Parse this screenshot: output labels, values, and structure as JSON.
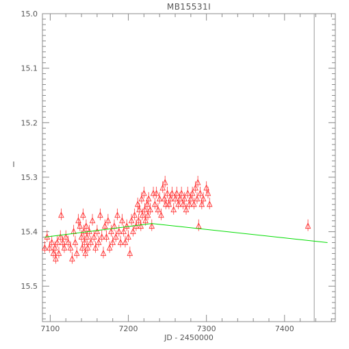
{
  "chart_data": {
    "type": "scatter",
    "title": "MB15531I",
    "xlabel": "JD - 2450000",
    "ylabel": "I",
    "xlim": [
      7090,
      7465
    ],
    "ylim": [
      15.0,
      15.565
    ],
    "y_inverted": true,
    "x_ticks": [
      7100,
      7200,
      7300,
      7400
    ],
    "y_ticks": [
      15.0,
      15.1,
      15.2,
      15.3,
      15.4,
      15.5
    ],
    "y_tick_labels": [
      "15.0",
      "15.1",
      "15.2",
      "15.3",
      "15.4",
      "15.5"
    ],
    "grid": false,
    "marker": "triangle",
    "marker_color": "#ff3333",
    "model_color": "#00dd00",
    "vline_color": "#999999",
    "vline_x": 7438,
    "model_curve": {
      "x": [
        7093,
        7230,
        7455
      ],
      "y": [
        15.41,
        15.385,
        15.42
      ]
    },
    "points": [
      [
        7093,
        15.43
      ],
      [
        7096,
        15.41
      ],
      [
        7099,
        15.43
      ],
      [
        7102,
        15.42
      ],
      [
        7104,
        15.44
      ],
      [
        7106,
        15.43
      ],
      [
        7107,
        15.45
      ],
      [
        7109,
        15.42
      ],
      [
        7111,
        15.44
      ],
      [
        7113,
        15.41
      ],
      [
        7114,
        15.37
      ],
      [
        7116,
        15.42
      ],
      [
        7118,
        15.43
      ],
      [
        7120,
        15.41
      ],
      [
        7123,
        15.42
      ],
      [
        7126,
        15.43
      ],
      [
        7128,
        15.45
      ],
      [
        7130,
        15.4
      ],
      [
        7132,
        15.42
      ],
      [
        7134,
        15.44
      ],
      [
        7136,
        15.38
      ],
      [
        7138,
        15.39
      ],
      [
        7140,
        15.41
      ],
      [
        7141,
        15.43
      ],
      [
        7142,
        15.37
      ],
      [
        7143,
        15.4
      ],
      [
        7144,
        15.42
      ],
      [
        7145,
        15.44
      ],
      [
        7146,
        15.39
      ],
      [
        7147,
        15.41
      ],
      [
        7148,
        15.43
      ],
      [
        7150,
        15.4
      ],
      [
        7152,
        15.42
      ],
      [
        7154,
        15.38
      ],
      [
        7156,
        15.41
      ],
      [
        7158,
        15.43
      ],
      [
        7160,
        15.4
      ],
      [
        7162,
        15.42
      ],
      [
        7164,
        15.37
      ],
      [
        7166,
        15.41
      ],
      [
        7168,
        15.44
      ],
      [
        7170,
        15.39
      ],
      [
        7172,
        15.41
      ],
      [
        7174,
        15.38
      ],
      [
        7176,
        15.43
      ],
      [
        7178,
        15.4
      ],
      [
        7180,
        15.42
      ],
      [
        7182,
        15.39
      ],
      [
        7184,
        15.41
      ],
      [
        7186,
        15.37
      ],
      [
        7188,
        15.4
      ],
      [
        7190,
        15.42
      ],
      [
        7192,
        15.38
      ],
      [
        7194,
        15.4
      ],
      [
        7196,
        15.42
      ],
      [
        7198,
        15.39
      ],
      [
        7200,
        15.41
      ],
      [
        7202,
        15.44
      ],
      [
        7204,
        15.38
      ],
      [
        7206,
        15.4
      ],
      [
        7208,
        15.37
      ],
      [
        7210,
        15.39
      ],
      [
        7212,
        15.35
      ],
      [
        7213,
        15.38
      ],
      [
        7214,
        15.36
      ],
      [
        7216,
        15.39
      ],
      [
        7217,
        15.34
      ],
      [
        7218,
        15.37
      ],
      [
        7220,
        15.33
      ],
      [
        7221,
        15.36
      ],
      [
        7222,
        15.38
      ],
      [
        7224,
        15.35
      ],
      [
        7225,
        15.37
      ],
      [
        7226,
        15.34
      ],
      [
        7228,
        15.36
      ],
      [
        7230,
        15.39
      ],
      [
        7232,
        15.33
      ],
      [
        7234,
        15.35
      ],
      [
        7236,
        15.33
      ],
      [
        7238,
        15.36
      ],
      [
        7240,
        15.34
      ],
      [
        7242,
        15.37
      ],
      [
        7244,
        15.32
      ],
      [
        7246,
        15.34
      ],
      [
        7247,
        15.31
      ],
      [
        7248,
        15.35
      ],
      [
        7250,
        15.33
      ],
      [
        7252,
        15.35
      ],
      [
        7254,
        15.34
      ],
      [
        7256,
        15.33
      ],
      [
        7258,
        15.36
      ],
      [
        7260,
        15.34
      ],
      [
        7262,
        15.33
      ],
      [
        7264,
        15.35
      ],
      [
        7266,
        15.34
      ],
      [
        7268,
        15.33
      ],
      [
        7270,
        15.35
      ],
      [
        7272,
        15.34
      ],
      [
        7274,
        15.36
      ],
      [
        7276,
        15.33
      ],
      [
        7278,
        15.35
      ],
      [
        7280,
        15.34
      ],
      [
        7282,
        15.33
      ],
      [
        7284,
        15.35
      ],
      [
        7286,
        15.32
      ],
      [
        7288,
        15.34
      ],
      [
        7289,
        15.31
      ],
      [
        7290,
        15.39
      ],
      [
        7292,
        15.33
      ],
      [
        7294,
        15.35
      ],
      [
        7296,
        15.34
      ],
      [
        7300,
        15.32
      ],
      [
        7302,
        15.33
      ],
      [
        7304,
        15.35
      ],
      [
        7430,
        15.39
      ]
    ]
  }
}
